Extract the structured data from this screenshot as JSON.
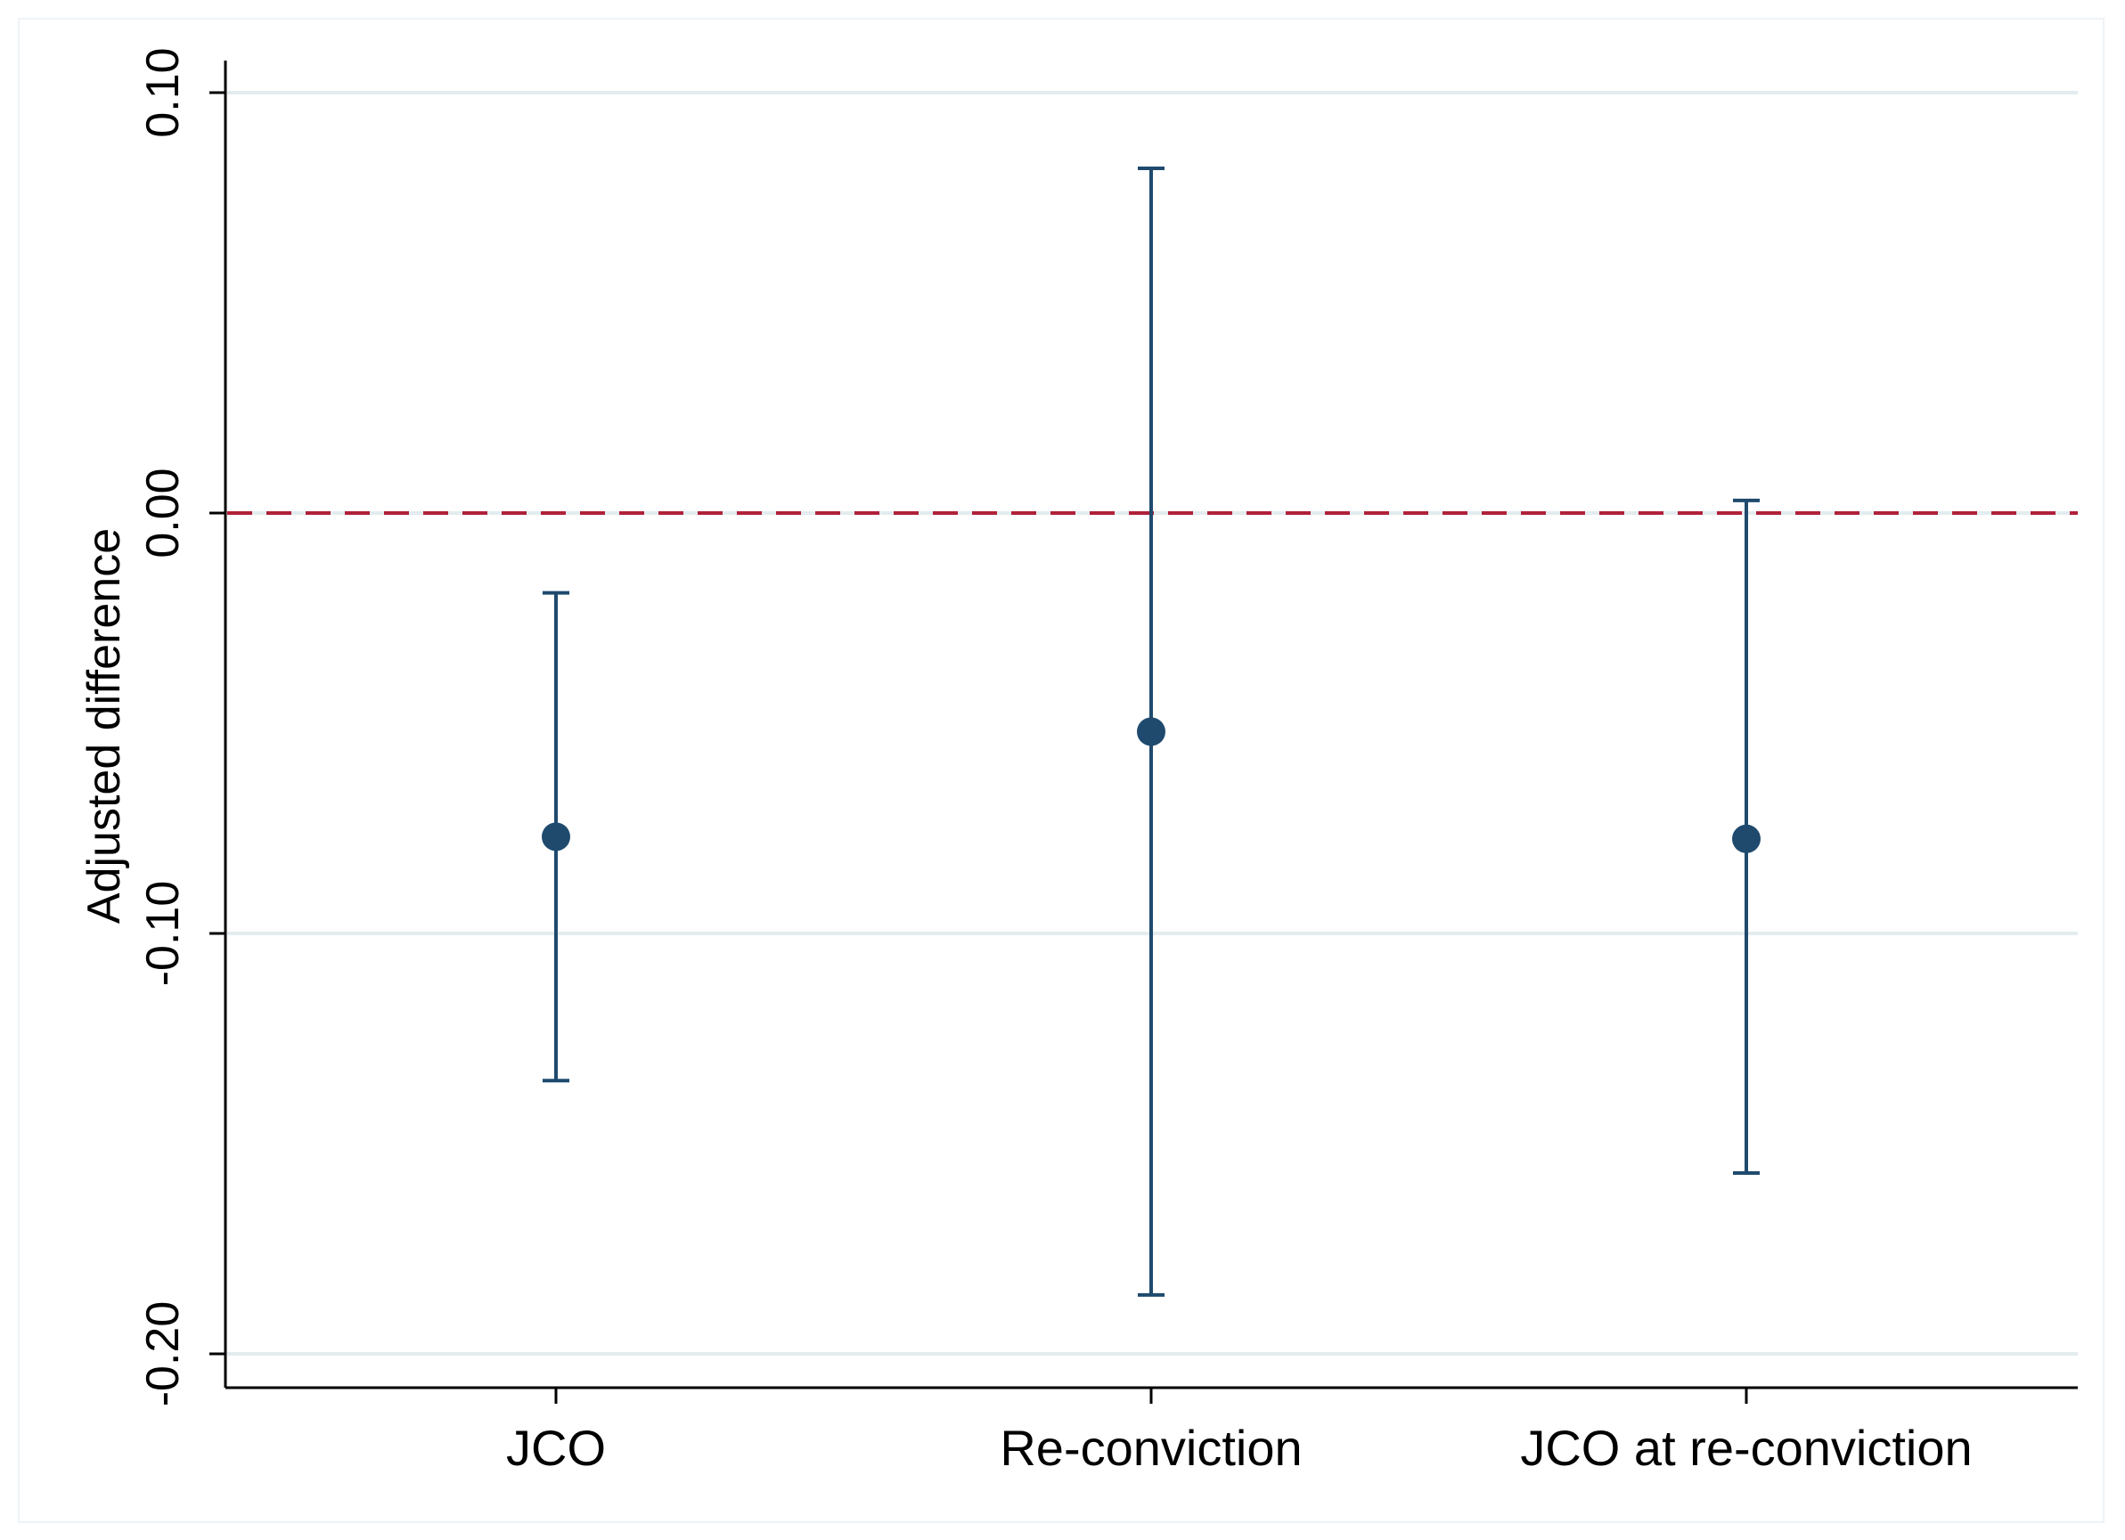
{
  "chart_data": {
    "type": "errorbar",
    "title": "",
    "xlabel": "",
    "ylabel": "Adjusted difference",
    "ylim": [
      -0.208,
      0.108
    ],
    "yticks": [
      0.1,
      0.0,
      -0.1,
      -0.2
    ],
    "ytick_labels": [
      "0.10",
      "0.00",
      "-0.10",
      "-0.20"
    ],
    "grid": true,
    "reference_line": {
      "y": 0.0,
      "style": "dashed"
    },
    "categories": [
      "JCO",
      "Re-conviction",
      "JCO at re-conviction"
    ],
    "estimates": [
      -0.077,
      -0.052,
      -0.0775
    ],
    "ci_lower": [
      -0.135,
      -0.186,
      -0.157
    ],
    "ci_upper": [
      -0.019,
      0.082,
      0.003
    ]
  },
  "colors": {
    "marker": "#1f4a6e",
    "reference_line": "#b0203a",
    "grid": "#e3ecef",
    "axis": "#000000"
  }
}
